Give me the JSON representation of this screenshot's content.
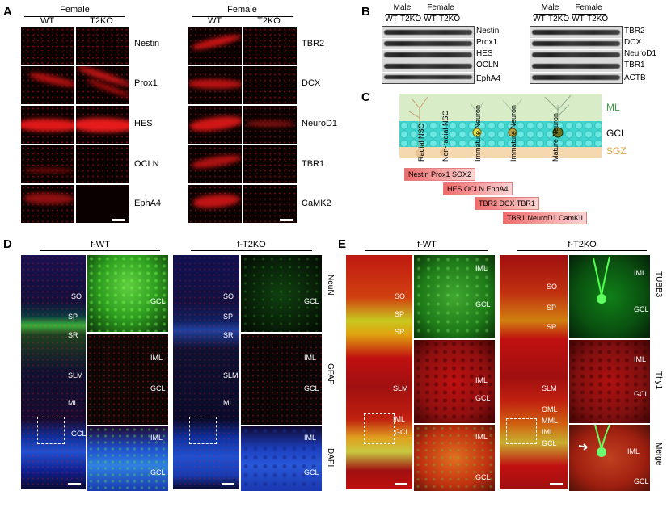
{
  "panels": {
    "A": {
      "label": "A",
      "group_left": {
        "sex": "Female",
        "col1": "WT",
        "col2": "T2KO",
        "rows": [
          "Nestin",
          "Prox1",
          "HES",
          "OCLN",
          "EphA4"
        ]
      },
      "group_right": {
        "sex": "Female",
        "col1": "WT",
        "col2": "T2KO",
        "rows": [
          "TBR2",
          "DCX",
          "NeuroD1",
          "TBR1",
          "CaMK2"
        ]
      }
    },
    "B": {
      "label": "B",
      "blot_left": {
        "male": "Male",
        "female": "Female",
        "cols": [
          "WT",
          "T2KO",
          "WT",
          "T2KO"
        ],
        "rows": [
          "Nestin",
          "Prox1",
          "HES",
          "OCLN",
          "EphA4"
        ]
      },
      "blot_right": {
        "male": "Male",
        "female": "Female",
        "cols": [
          "WT",
          "T2KO",
          "WT",
          "T2KO"
        ],
        "rows": [
          "TBR2",
          "DCX",
          "NeuroD1",
          "TBR1",
          "ACTB"
        ]
      }
    },
    "C": {
      "label": "C",
      "layers": {
        "ml": "ML",
        "gcl": "GCL",
        "sgz": "SGZ"
      },
      "cell_types": [
        "Radial NSC",
        "Non-radial NSC",
        "Immature Neuron",
        "Immature Neuron",
        "Mature Neuron"
      ],
      "markers": [
        "Nestin  Prox1 SOX2",
        "HES  OCLN  EphA4",
        "TBR2   DCX  TBR1",
        "TBR1  NeuroD1  CamKII"
      ]
    },
    "D": {
      "label": "D",
      "groups": [
        "f-WT",
        "f-T2KO"
      ],
      "region_labels": [
        "SO",
        "SP",
        "SR",
        "SLM",
        "ML",
        "GCL"
      ],
      "inset_labels": {
        "r1": "GCL",
        "r2a": "IML",
        "r2b": "GCL",
        "r3a": "IML",
        "r3b": "GCL"
      },
      "stains": [
        "NeuN",
        "GFAP",
        "DAPI"
      ]
    },
    "E": {
      "label": "E",
      "groups": [
        "f-WT",
        "f-T2KO"
      ],
      "region_labels_wt": [
        "SO",
        "SP",
        "SR",
        "SLM",
        "IML",
        "GCL"
      ],
      "region_labels_ko": [
        "SO",
        "SP",
        "SR",
        "SLM",
        "OML",
        "MML",
        "IML",
        "GCL"
      ],
      "inset_labels": {
        "iml": "IML",
        "gcl": "GCL"
      },
      "stains": [
        "TUBB3",
        "Thy1",
        "Merge"
      ]
    }
  },
  "colors": {
    "red": "#e01818",
    "green": "#2ecc2e",
    "blue": "#1e3cc8",
    "layer_teal": "#3fd6d0",
    "ml_green": "#d8ecc8",
    "sgz_tan": "#f5d7b0"
  }
}
